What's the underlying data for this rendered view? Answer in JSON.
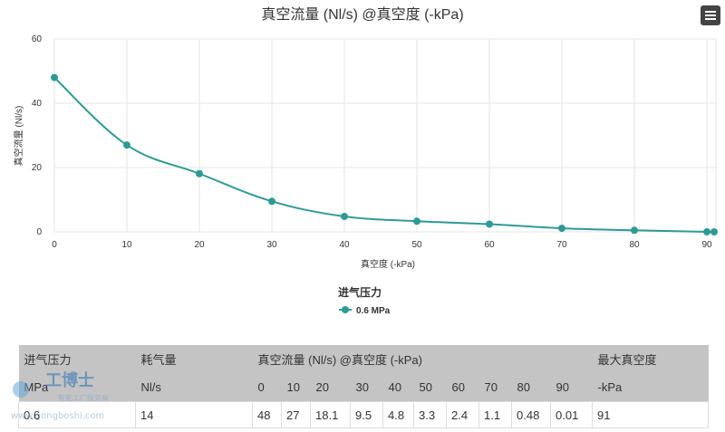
{
  "chart_data": {
    "type": "line",
    "title": "真空流量 (Nl/s) @真空度 (-kPa)",
    "xlabel": "真空度 (-kPa)",
    "ylabel": "真空流量 (Nl/s)",
    "xlim": [
      0,
      91
    ],
    "ylim": [
      0,
      60
    ],
    "xticks": [
      0,
      10,
      20,
      30,
      40,
      50,
      60,
      70,
      80,
      90
    ],
    "yticks": [
      0,
      20,
      40,
      60
    ],
    "grid": true,
    "legend": {
      "title": "进气压力",
      "placement": "bottom-center"
    },
    "series": [
      {
        "name": "0.6 MPa",
        "color": "#2e9a94",
        "x": [
          0,
          10,
          20,
          30,
          40,
          50,
          60,
          70,
          80,
          90,
          91
        ],
        "values": [
          48,
          27,
          18.1,
          9.5,
          4.8,
          3.3,
          2.4,
          1.1,
          0.48,
          0.01,
          0
        ]
      }
    ]
  },
  "table": {
    "header_top": [
      "进气压力",
      "耗气量",
      "真空流量 (Nl/s) @真空度 (-kPa)",
      "最大真空度"
    ],
    "header_sub": [
      "MPa",
      "Nl/s",
      "0",
      "10",
      "20",
      "30",
      "40",
      "50",
      "60",
      "70",
      "80",
      "90",
      "-kPa"
    ],
    "row": [
      "0.6",
      "14",
      "48",
      "27",
      "18.1",
      "9.5",
      "4.8",
      "3.3",
      "2.4",
      "1.1",
      "0.48",
      "0.01",
      "91"
    ]
  },
  "watermark": {
    "brand": "工博士",
    "tagline": "智能工厂服务商",
    "url": "www.gongboshi.com"
  },
  "icons": {
    "menu": "hamburger-menu-icon"
  }
}
